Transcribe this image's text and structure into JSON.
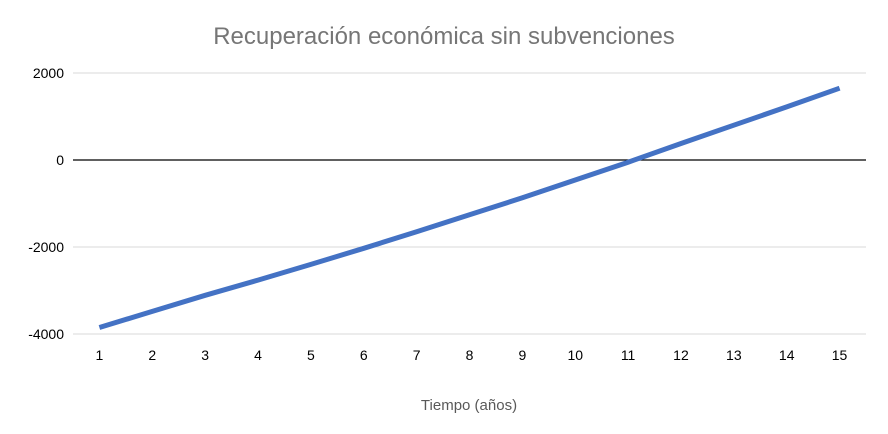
{
  "chart_data": {
    "type": "line",
    "title": "Recuperación económica sin subvenciones",
    "xlabel": "Tiempo (años)",
    "ylabel": "",
    "x": [
      1,
      2,
      3,
      4,
      5,
      6,
      7,
      8,
      9,
      10,
      11,
      12,
      13,
      14,
      15
    ],
    "x_tick_labels": [
      "1",
      "2",
      "3",
      "4",
      "5",
      "6",
      "7",
      "8",
      "9",
      "10",
      "11",
      "12",
      "13",
      "14",
      "15"
    ],
    "y_ticks": [
      2000,
      0,
      -2000,
      -4000
    ],
    "y_tick_labels": [
      "2000",
      "0",
      "-2000",
      "-4000"
    ],
    "ylim": [
      -4000,
      2000
    ],
    "grid": true,
    "legend": "none",
    "series": [
      {
        "color": "#4472c4",
        "values": [
          -3850,
          -3480,
          -3110,
          -2760,
          -2400,
          -2030,
          -1650,
          -1260,
          -870,
          -460,
          -50,
          380,
          800,
          1220,
          1650
        ]
      }
    ]
  }
}
